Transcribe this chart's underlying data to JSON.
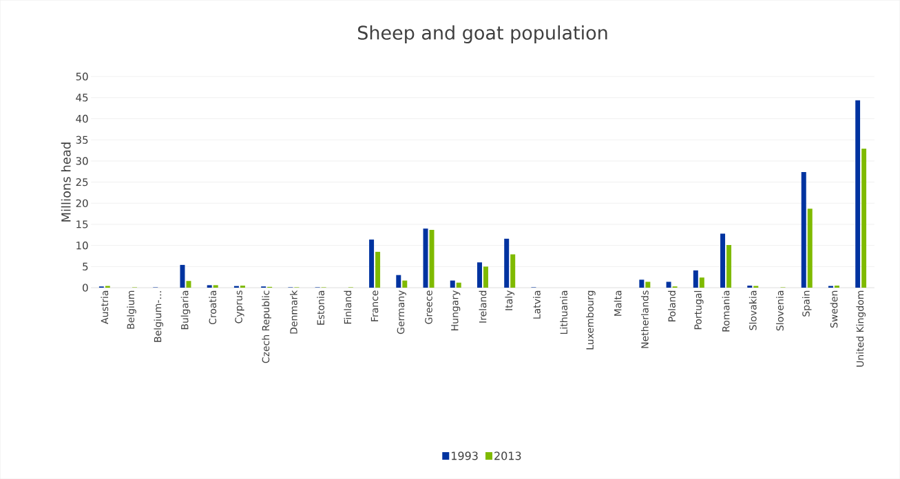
{
  "chart_data": {
    "type": "bar",
    "title": "Sheep and goat population",
    "ylabel": "Millions head",
    "categories": [
      "Austria",
      "Belgium",
      "Belgium-…",
      "Bulgaria",
      "Croatia",
      "Cyprus",
      "Czech Republic",
      "Denmark",
      "Estonia",
      "Finland",
      "France",
      "Germany",
      "Greece",
      "Hungary",
      "Ireland",
      "Italy",
      "Latvia",
      "Lithuania",
      "Luxembourg",
      "Malta",
      "Netherlands",
      "Poland",
      "Portugal",
      "Romania",
      "Slovakia",
      "Slovenia",
      "Spain",
      "Sweden",
      "United Kingdom"
    ],
    "series": [
      {
        "name": "1993",
        "color": "#0033a0",
        "values": [
          0.3,
          0.0,
          0.1,
          5.4,
          0.6,
          0.4,
          0.3,
          0.1,
          0.1,
          0.0,
          11.4,
          3.0,
          14.0,
          1.7,
          6.0,
          11.6,
          0.1,
          0.0,
          0.0,
          0.0,
          1.9,
          1.4,
          4.1,
          12.8,
          0.5,
          0.0,
          27.4,
          0.4,
          44.4
        ]
      },
      {
        "name": "2013",
        "color": "#7fba00",
        "values": [
          0.4,
          0.1,
          0.0,
          1.6,
          0.6,
          0.5,
          0.2,
          0.1,
          0.1,
          0.1,
          8.5,
          1.7,
          13.7,
          1.2,
          5.0,
          7.9,
          0.0,
          0.0,
          0.0,
          0.0,
          1.4,
          0.3,
          2.4,
          10.1,
          0.4,
          0.1,
          18.7,
          0.5,
          32.9
        ]
      }
    ],
    "ylim": [
      0,
      50
    ],
    "yticks": [
      0,
      5,
      10,
      15,
      20,
      25,
      30,
      35,
      40,
      45,
      50
    ],
    "grid": "y",
    "legend": "bottom"
  }
}
